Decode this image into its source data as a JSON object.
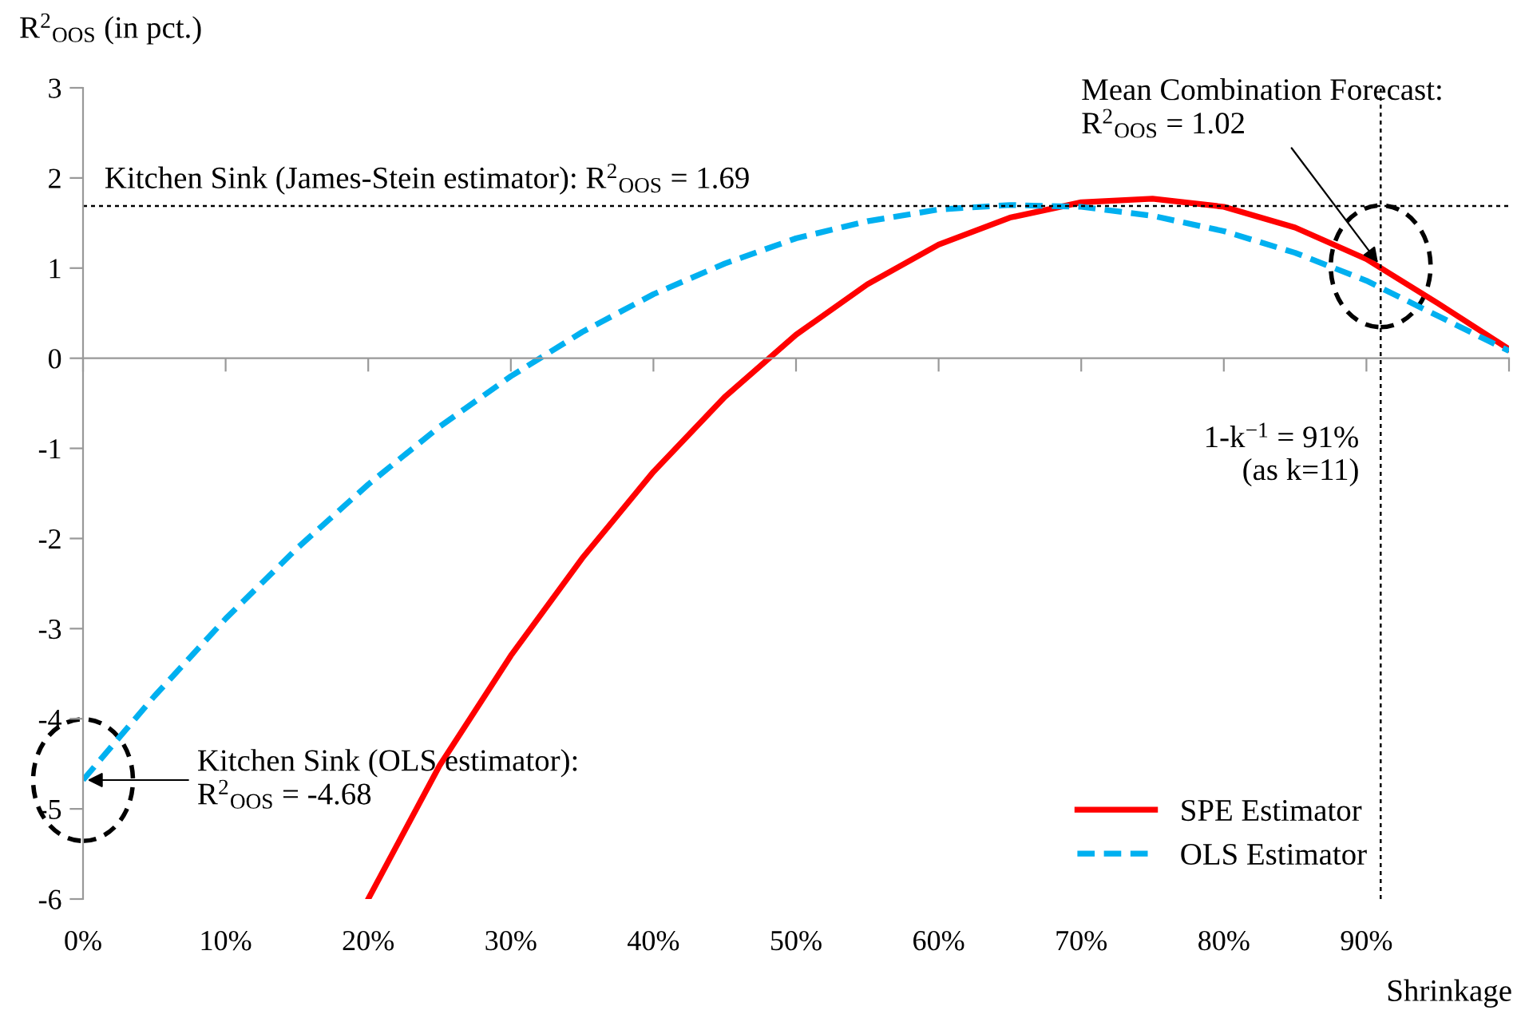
{
  "chart_data": {
    "type": "line",
    "xlabel": "Shrinkage",
    "ylabel": "R$^{2}$$_{OOS}$ (in pct.)",
    "xlim": [
      0,
      100
    ],
    "ylim": [
      -6,
      3
    ],
    "xticks": [
      {
        "value": 0,
        "label": "0%"
      },
      {
        "value": 10,
        "label": "10%"
      },
      {
        "value": 20,
        "label": "20%"
      },
      {
        "value": 30,
        "label": "30%"
      },
      {
        "value": 40,
        "label": "40%"
      },
      {
        "value": 50,
        "label": "50%"
      },
      {
        "value": 60,
        "label": "60%"
      },
      {
        "value": 70,
        "label": "70%"
      },
      {
        "value": 80,
        "label": "80%"
      },
      {
        "value": 90,
        "label": "90%"
      },
      {
        "value": 100,
        "label": null
      }
    ],
    "yticks": [
      -6,
      -5,
      -4,
      -3,
      -2,
      -1,
      0,
      1,
      2,
      3
    ],
    "legend": "bottom right",
    "series": [
      {
        "name": "SPE Estimator",
        "color": "#ff0000",
        "line_style": "solid",
        "x": [
          20,
          25,
          30,
          35,
          40,
          45,
          50,
          55,
          60,
          65,
          70,
          75,
          80,
          85,
          90,
          95,
          100
        ],
        "values": [
          -6.0,
          -4.52,
          -3.3,
          -2.22,
          -1.26,
          -0.43,
          0.26,
          0.82,
          1.26,
          1.56,
          1.73,
          1.77,
          1.68,
          1.45,
          1.1,
          0.61,
          0.1
        ]
      },
      {
        "name": "OLS Estimator",
        "color": "#00b0f0",
        "line_style": "dashed",
        "x": [
          0,
          5,
          10,
          15,
          20,
          25,
          30,
          35,
          40,
          45,
          50,
          55,
          60,
          65,
          70,
          75,
          80,
          85,
          90,
          95,
          100
        ],
        "values": [
          -4.68,
          -3.75,
          -2.89,
          -2.11,
          -1.4,
          -0.76,
          -0.2,
          0.29,
          0.71,
          1.05,
          1.33,
          1.52,
          1.65,
          1.7,
          1.68,
          1.58,
          1.41,
          1.17,
          0.86,
          0.47,
          0.08
        ]
      }
    ],
    "ref_lines": [
      {
        "axis": "y",
        "value": 1.69,
        "label": "Kitchen Sink (James-Stein estimator): R$^{2}$$_{OOS}$ = 1.69",
        "color": "#000000",
        "line_style": "dotted"
      },
      {
        "axis": "x",
        "value": 91,
        "label": "1-k$^{−1}$ = 91%\n(as k=11)",
        "color": "#000000",
        "line_style": "dotted"
      }
    ],
    "annotations": [
      {
        "text": "Mean Combination Forecast:\nR$^{2}$$_{OOS}$ = 1.02",
        "x": 91,
        "y": 1.02
      },
      {
        "text": "Kitchen Sink (OLS estimator):\nR$^{2}$$_{OOS}$ = -4.68",
        "x": 0,
        "y": -4.68
      }
    ]
  }
}
